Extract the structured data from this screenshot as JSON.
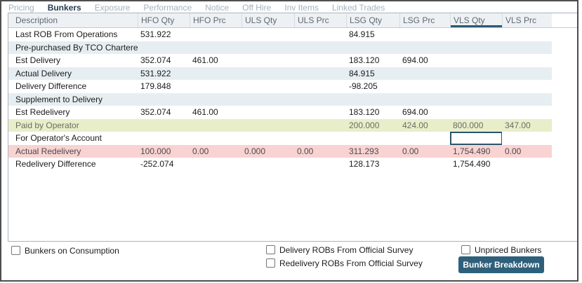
{
  "colors": {
    "accent_underline": "#2a5a73",
    "header_bg": "#eef1f4",
    "stripe_row_bg": "#e7eef2",
    "paid_row_bg": "#e9eeca",
    "alert_row_bg": "#f9d2d2",
    "focus_border": "#2a546c",
    "button_bg": "#2e607c",
    "frame_border": "#4e4e4e"
  },
  "tabs": {
    "items": [
      {
        "label": "Pricing",
        "active": false
      },
      {
        "label": "Bunkers",
        "active": true
      },
      {
        "label": "Exposure",
        "active": false
      },
      {
        "label": "Performance",
        "active": false
      },
      {
        "label": "Notice",
        "active": false
      },
      {
        "label": "Off Hire",
        "active": false
      },
      {
        "label": "Inv Items",
        "active": false
      },
      {
        "label": "Linked Trades",
        "active": false
      }
    ]
  },
  "table": {
    "columns": [
      "Description",
      "HFO Qty",
      "HFO Prc",
      "ULS Qty",
      "ULS Prc",
      "LSG Qty",
      "LSG Prc",
      "VLS Qty",
      "VLS Prc"
    ],
    "selected_column": "VLS Qty",
    "focused_cell": {
      "row_index": 8,
      "column": "VLS Qty",
      "value_index": 6,
      "value": ""
    },
    "rows": [
      {
        "description": "Last ROB From Operations",
        "style": "plain",
        "section": false,
        "values": [
          "531.922",
          "",
          "",
          "",
          "84.915",
          "",
          "",
          ""
        ]
      },
      {
        "description": "Pre-purchased By TCO Charterer",
        "style": "band",
        "section": true,
        "values": [
          "",
          "",
          "",
          "",
          "",
          "",
          "",
          ""
        ]
      },
      {
        "description": "Est Delivery",
        "style": "plain",
        "section": false,
        "values": [
          "352.074",
          "461.00",
          "",
          "",
          "183.120",
          "694.00",
          "",
          ""
        ]
      },
      {
        "description": "Actual Delivery",
        "style": "band",
        "section": false,
        "values": [
          "531.922",
          "",
          "",
          "",
          "84.915",
          "",
          "",
          ""
        ]
      },
      {
        "description": "Delivery Difference",
        "style": "plain",
        "section": false,
        "values": [
          "179.848",
          "",
          "",
          "",
          "-98.205",
          "",
          "",
          ""
        ]
      },
      {
        "description": "Supplement to Delivery",
        "style": "band",
        "section": true,
        "values": [
          "",
          "",
          "",
          "",
          "",
          "",
          "",
          ""
        ]
      },
      {
        "description": "Est Redelivery",
        "style": "plain",
        "section": false,
        "values": [
          "352.074",
          "461.00",
          "",
          "",
          "183.120",
          "694.00",
          "",
          ""
        ]
      },
      {
        "description": "Paid by Operator",
        "style": "paid",
        "section": false,
        "values": [
          "",
          "",
          "",
          "",
          "200.000",
          "424.00",
          "800.000",
          "347.00"
        ]
      },
      {
        "description": "For Operator's Account",
        "style": "plain",
        "section": false,
        "values": [
          "",
          "",
          "",
          "",
          "",
          "",
          "",
          ""
        ]
      },
      {
        "description": "Actual Redelivery",
        "style": "alert",
        "section": false,
        "values": [
          "100.000",
          "0.00",
          "0.000",
          "0.00",
          "311.293",
          "0.00",
          "1,754.490",
          "0.00"
        ]
      },
      {
        "description": "Redelivery Difference",
        "style": "plain",
        "section": false,
        "values": [
          "-252.074",
          "",
          "",
          "",
          "128.173",
          "",
          "1,754.490",
          ""
        ]
      }
    ]
  },
  "footer": {
    "checkboxes": [
      {
        "label": "Bunkers on Consumption",
        "checked": false
      },
      {
        "label": "Delivery ROBs From Official Survey",
        "checked": false
      },
      {
        "label": "Redelivery ROBs From Official Survey",
        "checked": false
      },
      {
        "label": "Unpriced Bunkers",
        "checked": false
      }
    ],
    "button_label": "Bunker Breakdown"
  }
}
